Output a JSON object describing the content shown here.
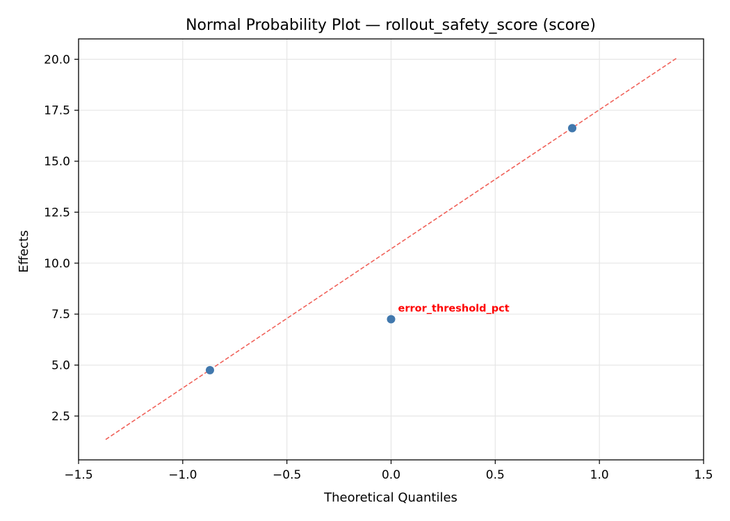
{
  "chart_data": {
    "type": "scatter",
    "title": "Normal Probability Plot — rollout_safety_score (score)",
    "xlabel": "Theoretical Quantiles",
    "ylabel": "Effects",
    "xlim": [
      -1.5,
      1.5
    ],
    "ylim": [
      0.35,
      21.0
    ],
    "x_ticks": [
      -1.5,
      -1.0,
      -0.5,
      0.0,
      0.5,
      1.0,
      1.5
    ],
    "x_tick_labels": [
      "−1.5",
      "−1.0",
      "−0.5",
      "0.0",
      "0.5",
      "1.0",
      "1.5"
    ],
    "y_ticks": [
      2.5,
      5.0,
      7.5,
      10.0,
      12.5,
      15.0,
      17.5,
      20.0
    ],
    "y_tick_labels": [
      "2.5",
      "5.0",
      "7.5",
      "10.0",
      "12.5",
      "15.0",
      "17.5",
      "20.0"
    ],
    "grid": true,
    "points": [
      {
        "x": -0.8694,
        "y": 4.75
      },
      {
        "x": 0.0,
        "y": 7.25
      },
      {
        "x": 0.8694,
        "y": 16.62
      }
    ],
    "reference_line": {
      "x": [
        -1.3698,
        1.3698
      ],
      "y": [
        1.35,
        20.05
      ]
    },
    "annotations": [
      {
        "text": "error_threshold_pct",
        "x": 0.0,
        "y": 7.25
      }
    ],
    "colors": {
      "points": "#4178ad",
      "reference_line": "#f0625a",
      "annotation": "#ff0000",
      "grid": "#e6e6e6",
      "axes": "#000000"
    }
  }
}
